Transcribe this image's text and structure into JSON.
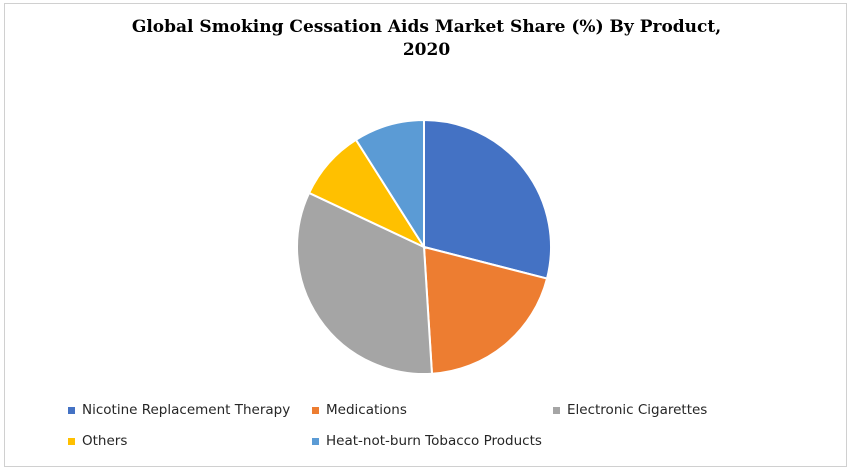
{
  "chart_data": {
    "type": "pie",
    "title_line1": "Global Smoking Cessation Aids Market Share (%) By Product,",
    "title_line2": "2020",
    "slices": [
      {
        "label": "Nicotine Replacement Therapy",
        "value": 29,
        "color": "#4472C4"
      },
      {
        "label": "Medications",
        "value": 20,
        "color": "#ED7D31"
      },
      {
        "label": "Electronic Cigarettes",
        "value": 33,
        "color": "#A5A5A5"
      },
      {
        "label": "Others",
        "value": 9,
        "color": "#FFC000"
      },
      {
        "label": "Heat-not-burn Tobacco Products",
        "value": 9,
        "color": "#5B9BD5"
      }
    ],
    "legend_position": "bottom"
  }
}
